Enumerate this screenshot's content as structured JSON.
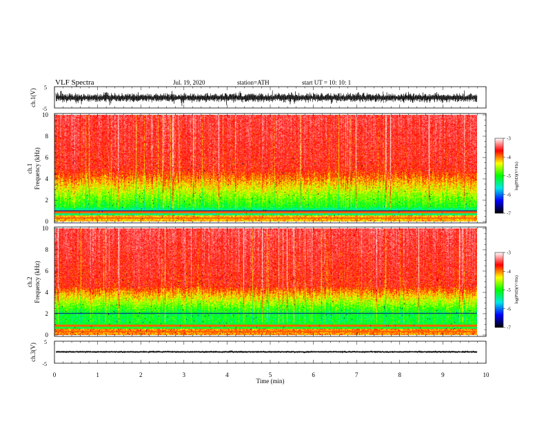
{
  "header": {
    "title": "VLF  Spectra",
    "date": "Jul. 19, 2020",
    "station": "station=ATH",
    "start": "start  UT  =    10: 10: 1"
  },
  "chart_data": [
    {
      "id": "ch1_waveform",
      "type": "line",
      "ylabel": "ch.1(V)",
      "ylim": [
        -5,
        5
      ],
      "yticks": [
        5,
        -5
      ],
      "xlim": [
        0,
        10
      ],
      "color": "#000000"
    },
    {
      "id": "ch1_spectrogram",
      "type": "heatmap",
      "ylabel_top": "ch.1",
      "ylabel": "Frequency  (kHz)",
      "ylim": [
        0,
        10
      ],
      "yticks": [
        0,
        2,
        4,
        6,
        8,
        10
      ],
      "xlim": [
        0,
        10
      ],
      "colorbar": {
        "label": "log(PSD)(V²/Hz)",
        "range": [
          -7,
          -3
        ],
        "ticks": [
          -3,
          -4,
          -5,
          -6,
          -7
        ],
        "colormap": [
          "#000000",
          "#0000ff",
          "#00e8e8",
          "#00ff00",
          "#ffff00",
          "#ff0000",
          "#ffffff"
        ]
      }
    },
    {
      "id": "ch2_spectrogram",
      "type": "heatmap",
      "ylabel_top": "ch.2",
      "ylabel": "Frequency  (kHz)",
      "ylim": [
        0,
        10
      ],
      "yticks": [
        0,
        2,
        4,
        6,
        8,
        10
      ],
      "xlim": [
        0,
        10
      ],
      "colorbar": {
        "label": "log(PSD)(V²/Hz)",
        "range": [
          -7,
          -3
        ],
        "ticks": [
          -3,
          -4,
          -5,
          -6,
          -7
        ],
        "colormap": [
          "#000000",
          "#0000ff",
          "#00e8e8",
          "#00ff00",
          "#ffff00",
          "#ff0000",
          "#ffffff"
        ]
      }
    },
    {
      "id": "ch3_waveform",
      "type": "line",
      "ylabel": "ch.3(V)",
      "ylim": [
        -5,
        5
      ],
      "yticks": [
        5,
        -5
      ],
      "xlim": [
        0,
        10
      ],
      "xlabel": "Time  (min)",
      "xticks": [
        0,
        1,
        2,
        3,
        4,
        5,
        6,
        7,
        8,
        9,
        10
      ],
      "color": "#000000"
    }
  ]
}
